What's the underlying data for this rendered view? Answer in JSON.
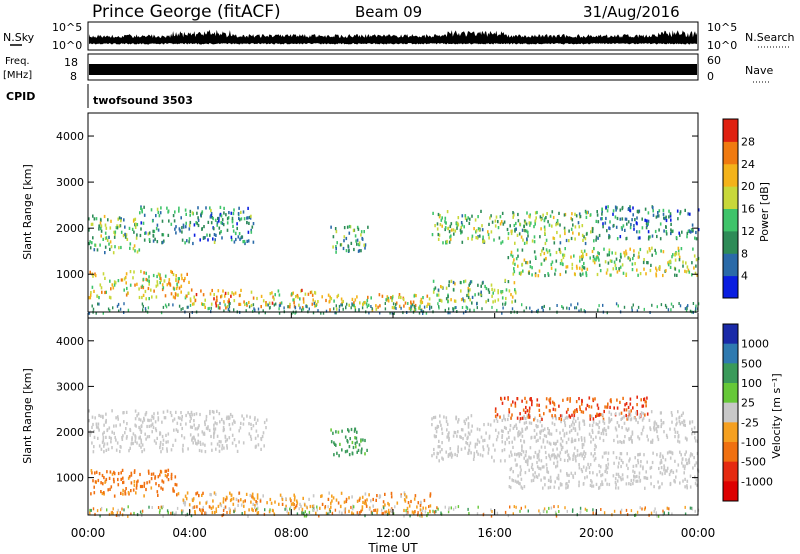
{
  "header": {
    "station": "Prince George (fitACF)",
    "beam": "Beam 09",
    "date": "31/Aug/2016"
  },
  "nsky_panel": {
    "left_label": "N.Sky",
    "left_ticks": [
      "10^5",
      "10^0"
    ],
    "right_label": "N.Search",
    "right_ticks": [
      "10^5",
      "10^0"
    ]
  },
  "freq_panel": {
    "left_label_line1": "Freq.",
    "left_label_line2": "[MHz]",
    "left_ticks": [
      "18",
      "8"
    ],
    "right_label": "Nave",
    "right_ticks": [
      "60",
      "0"
    ]
  },
  "cpid_panel": {
    "label": "CPID",
    "program": "twofsound 3503"
  },
  "chart_data": [
    {
      "type": "heatmap",
      "name": "power",
      "ylabel": "Slant Range [km]",
      "ylim": [
        180,
        4500
      ],
      "y_ticks": [
        "1000",
        "2000",
        "3000",
        "4000"
      ],
      "colorbar_label": "Power [dB]",
      "colorbar_ticks": [
        "4",
        "8",
        "12",
        "16",
        "20",
        "24",
        "28"
      ],
      "colorbar_colors": [
        "#0a1ee0",
        "#2a6aa8",
        "#2e8b57",
        "#3fc46a",
        "#c8d83a",
        "#f4b31a",
        "#f07a10",
        "#e02010"
      ],
      "regions": [
        {
          "t": [
            0.0,
            2.0
          ],
          "r": [
            1500,
            2300
          ],
          "level": 14
        },
        {
          "t": [
            2.0,
            6.5
          ],
          "r": [
            1700,
            2500
          ],
          "level": 10
        },
        {
          "t": [
            0.0,
            4.0
          ],
          "r": [
            500,
            1100
          ],
          "level": 20
        },
        {
          "t": [
            4.0,
            9.0
          ],
          "r": [
            300,
            700
          ],
          "level": 22
        },
        {
          "t": [
            9.0,
            13.5
          ],
          "r": [
            250,
            600
          ],
          "level": 20
        },
        {
          "t": [
            9.5,
            11.0
          ],
          "r": [
            1500,
            2100
          ],
          "level": 12
        },
        {
          "t": [
            13.5,
            20.0
          ],
          "r": [
            1700,
            2400
          ],
          "level": 14
        },
        {
          "t": [
            16.5,
            24.0
          ],
          "r": [
            1000,
            1600
          ],
          "level": 16
        },
        {
          "t": [
            13.5,
            17.0
          ],
          "r": [
            400,
            900
          ],
          "level": 14
        },
        {
          "t": [
            20.0,
            24.0
          ],
          "r": [
            1800,
            2500
          ],
          "level": 8
        }
      ]
    },
    {
      "type": "heatmap",
      "name": "velocity",
      "ylabel": "Slant Range [km]",
      "ylim": [
        180,
        4500
      ],
      "y_ticks": [
        "1000",
        "2000",
        "3000",
        "4000"
      ],
      "colorbar_label": "Velocity [m s⁻¹]",
      "colorbar_ticks": [
        "1000",
        "500",
        "100",
        "25",
        "-25",
        "-100",
        "-500",
        "-1000"
      ],
      "colorbar_colors": [
        "#1a2aa8",
        "#2f7ab0",
        "#3a9a5a",
        "#66c838",
        "#c8c8c8",
        "#f5a020",
        "#f07010",
        "#e52a10",
        "#dd0000"
      ],
      "regions": [
        {
          "t": [
            0.0,
            3.5
          ],
          "r": [
            600,
            1200
          ],
          "level": -150
        },
        {
          "t": [
            0.0,
            7.0
          ],
          "r": [
            1600,
            2500
          ],
          "level": 0
        },
        {
          "t": [
            3.5,
            13.5
          ],
          "r": [
            250,
            700
          ],
          "level": -40
        },
        {
          "t": [
            9.5,
            11.0
          ],
          "r": [
            1500,
            2100
          ],
          "level": 150
        },
        {
          "t": [
            13.5,
            20.0
          ],
          "r": [
            1400,
            2400
          ],
          "level": 0
        },
        {
          "t": [
            16.0,
            22.0
          ],
          "r": [
            2300,
            2800
          ],
          "level": -300
        },
        {
          "t": [
            16.5,
            24.0
          ],
          "r": [
            800,
            1600
          ],
          "level": 0
        },
        {
          "t": [
            20.0,
            24.0
          ],
          "r": [
            1800,
            2500
          ],
          "level": 0
        }
      ]
    }
  ],
  "x_axis": {
    "ticks": [
      "00:00",
      "04:00",
      "08:00",
      "12:00",
      "16:00",
      "20:00",
      "00:00"
    ],
    "label": "Time UT"
  }
}
